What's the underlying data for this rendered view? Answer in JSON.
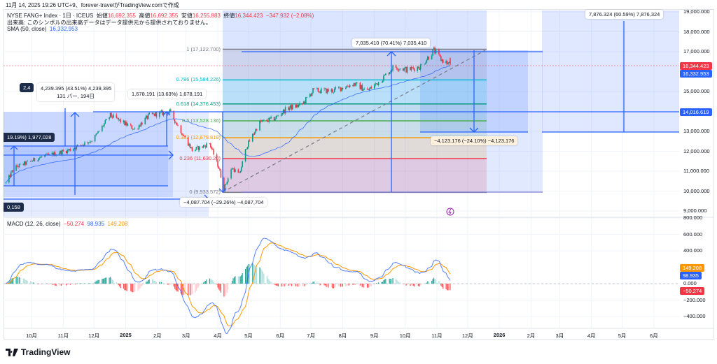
{
  "header": {
    "created": "11月 14, 2025 19:26 UTC+9、forever-travelがTradingView.comで作成",
    "symbol": "NYSE FANG+ Index · 1日 · ICEUS",
    "open_label": "始値",
    "open": "16,692.355",
    "high_label": "高値",
    "high": "16,692.355",
    "low_label": "安値",
    "low": "16,255.883",
    "close_label": "終値",
    "close": "16,344.423",
    "change": "−347.932 (−2.08%)",
    "volume_note": "出来高: このシンボルの出来高データはデータ提供元から提供されておりません。",
    "sma_label": "SMA (50, close)",
    "sma_value": "16,332.953"
  },
  "macd_legend": {
    "label": "MACD (12, 26, close)",
    "hist": "−50.274",
    "macd": "98.935",
    "signal": "149.208"
  },
  "price_axis": [
    "19,000.000",
    "18,000.000",
    "17,000.000",
    "15,000.000",
    "13,000.000",
    "12,000.000",
    "11,000.000",
    "10,000.000",
    "9,000.000"
  ],
  "price_axis_values": [
    19000,
    18000,
    17000,
    15000,
    13000,
    12000,
    11000,
    10000,
    9000
  ],
  "price_tags": {
    "last": "16,344.423",
    "sma": "16,332.953",
    "hline": "14,016.619"
  },
  "macd_axis": [
    "800.000",
    "600.000",
    "400.000",
    "0.000",
    "−200.000",
    "−400.000"
  ],
  "macd_axis_values": [
    800,
    600,
    400,
    0,
    -200,
    -400
  ],
  "macd_tags": {
    "signal": "149.208",
    "macd": "98.935",
    "hist": "−50.274"
  },
  "time_axis": [
    {
      "label": "10月",
      "date": "2024-10-01",
      "bold": false
    },
    {
      "label": "11月",
      "date": "2024-11-01",
      "bold": false
    },
    {
      "label": "12月",
      "date": "2024-12-01",
      "bold": false
    },
    {
      "label": "2025",
      "date": "2025-01-01",
      "bold": true
    },
    {
      "label": "2月",
      "date": "2025-02-01",
      "bold": false
    },
    {
      "label": "3月",
      "date": "2025-03-01",
      "bold": false
    },
    {
      "label": "4月",
      "date": "2025-04-01",
      "bold": false
    },
    {
      "label": "5月",
      "date": "2025-05-01",
      "bold": false
    },
    {
      "label": "6月",
      "date": "2025-06-01",
      "bold": false
    },
    {
      "label": "7月",
      "date": "2025-07-01",
      "bold": false
    },
    {
      "label": "8月",
      "date": "2025-08-01",
      "bold": false
    },
    {
      "label": "9月",
      "date": "2025-09-01",
      "bold": false
    },
    {
      "label": "10月",
      "date": "2025-10-01",
      "bold": false
    },
    {
      "label": "11月",
      "date": "2025-11-01",
      "bold": false
    },
    {
      "label": "12月",
      "date": "2025-12-01",
      "bold": false
    },
    {
      "label": "2026",
      "date": "2026-01-01",
      "bold": true
    },
    {
      "label": "2月",
      "date": "2026-02-01",
      "bold": false
    },
    {
      "label": "3月",
      "date": "2026-03-01",
      "bold": false
    },
    {
      "label": "4月",
      "date": "2026-04-01",
      "bold": false
    },
    {
      "label": "5月",
      "date": "2026-05-01",
      "bold": false
    },
    {
      "label": "6月",
      "date": "2026-06-01",
      "bold": false
    }
  ],
  "fib": [
    {
      "label": "1 (17,122.700)",
      "price": 17122.7,
      "color": "#787b86"
    },
    {
      "label": "0.786 (15,584.226)",
      "price": 15584.226,
      "color": "#00bcd4"
    },
    {
      "label": "0.618 (14,376.453)",
      "price": 14376.453,
      "color": "#089981"
    },
    {
      "label": "0.5 (13,528.136)",
      "price": 13528.136,
      "color": "#4caf50"
    },
    {
      "label": "0.382 (12,679.818)",
      "price": 12679.818,
      "color": "#ff9800"
    },
    {
      "label": "0.236 (11,630.20)",
      "price": 11630.2,
      "color": "#f23645"
    },
    {
      "label": "0 (9,933.572)",
      "price": 9933.572,
      "color": "#787b86"
    }
  ],
  "measure_labels": {
    "m1_line1": "4,239.395 (43.51%) 4,239,395",
    "m1_line2": "131 バー, 194日",
    "m1_hidden": "2,4",
    "m2": "19.19%) 1,977,028",
    "m3": "0,158",
    "m4": "1,678.191 (13.63%) 1,678,191",
    "m5": "−4,087.704 (−29.26%) −4,087,704",
    "m6": "7,035.410 (70.41%) 7,035,410",
    "m7": "−4,123.176 (−24.10%) −4,123,176",
    "m8": "7,876.324 (60.59%) 7,876,324"
  },
  "brand": "TradingView",
  "colors": {
    "up": "#089981",
    "down": "#f23645",
    "sma": "#2962ff",
    "macd": "#2962ff",
    "signal": "#ff9800",
    "drawing": "#2962ff"
  },
  "chart_data": {
    "type": "candlestick",
    "title": "NYSE FANG+ Index · 1日 · ICEUS",
    "interval": "1D",
    "keypoints_close": [
      {
        "date": "2024-09-06",
        "close": 10400
      },
      {
        "date": "2024-09-14",
        "close": 11170
      },
      {
        "date": "2024-10-10",
        "close": 11700
      },
      {
        "date": "2024-11-06",
        "close": 12050
      },
      {
        "date": "2024-11-30",
        "close": 12580
      },
      {
        "date": "2024-12-17",
        "close": 13800
      },
      {
        "date": "2025-01-10",
        "close": 13100
      },
      {
        "date": "2025-01-24",
        "close": 13800
      },
      {
        "date": "2025-02-13",
        "close": 13980
      },
      {
        "date": "2025-02-25",
        "close": 12930
      },
      {
        "date": "2025-03-07",
        "close": 12050
      },
      {
        "date": "2025-03-17",
        "close": 12230
      },
      {
        "date": "2025-03-24",
        "close": 12400
      },
      {
        "date": "2025-04-02",
        "close": 11170
      },
      {
        "date": "2025-04-07",
        "close": 10120
      },
      {
        "date": "2025-04-15",
        "close": 11170
      },
      {
        "date": "2025-04-22",
        "close": 10820
      },
      {
        "date": "2025-04-29",
        "close": 12230
      },
      {
        "date": "2025-05-12",
        "close": 13450
      },
      {
        "date": "2025-05-26",
        "close": 13630
      },
      {
        "date": "2025-06-08",
        "close": 14160
      },
      {
        "date": "2025-06-22",
        "close": 14330
      },
      {
        "date": "2025-07-03",
        "close": 15040
      },
      {
        "date": "2025-07-22",
        "close": 15040
      },
      {
        "date": "2025-08-12",
        "close": 15390
      },
      {
        "date": "2025-08-25",
        "close": 15040
      },
      {
        "date": "2025-09-07",
        "close": 15560
      },
      {
        "date": "2025-09-20",
        "close": 16260
      },
      {
        "date": "2025-10-03",
        "close": 16090
      },
      {
        "date": "2025-10-16",
        "close": 16260
      },
      {
        "date": "2025-10-29",
        "close": 17070
      },
      {
        "date": "2025-11-05",
        "close": 16610
      },
      {
        "date": "2025-11-14",
        "close": 16344.423
      }
    ],
    "last_bar": {
      "open": 16692.355,
      "high": 16692.355,
      "low": 16255.883,
      "close": 16344.423
    },
    "sma_period": 50,
    "macd": {
      "fast": 12,
      "slow": 26,
      "signal": 9,
      "last_hist": -50.274,
      "last_macd": 98.935,
      "last_signal": 149.208
    },
    "ylim": [
      9000,
      19000
    ],
    "macd_ylim": [
      -450,
      800
    ]
  }
}
